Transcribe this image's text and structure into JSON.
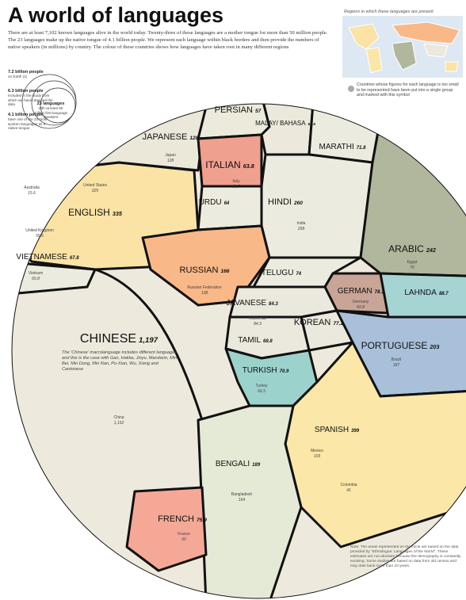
{
  "header": {
    "title": "A world of languages",
    "intro": "There are at least 7,102 known languages alive in the world today. Twenty-three of these languages are a mother tongue for more than 50 million people. The 23 languages make up the native tongue of 4.1 billion people. We represent each language within black borders and then provide the numbers of native speakers (in millions) by country. The colour of these countries shows how languages have taken root in many different regions"
  },
  "map": {
    "title": "Regions in which these languages are present",
    "note": "Countries whose figures for each language is too small to be represented have been put into a single group and marked with this symbol"
  },
  "legend": [
    {
      "value": "7.2 billion people",
      "text": "on Earth (1)"
    },
    {
      "value": "6.3 billion people",
      "text": "included in the study from which we have obtained the data"
    },
    {
      "value": "4.1 billion people",
      "text": "have one of the 23 most-spoken languages as a native tongue"
    },
    {
      "value": "23 languages",
      "text": "with at least 50 million first-language speakers"
    }
  ],
  "languages": [
    {
      "name": "CHINESE",
      "value": "1,197"
    },
    {
      "name": "ENGLISH",
      "value": "335"
    },
    {
      "name": "JAPANESE",
      "value": "128"
    },
    {
      "name": "PERSIAN",
      "value": "57"
    },
    {
      "name": "ITALIAN",
      "value": "63.8"
    },
    {
      "name": "MALAY/ BAHASA",
      "value": "60.5"
    },
    {
      "name": "MARATHI",
      "value": "71.8"
    },
    {
      "name": "URDU",
      "value": "64"
    },
    {
      "name": "HINDI",
      "value": "260"
    },
    {
      "name": "ARABIC",
      "value": "242"
    },
    {
      "name": "RUSSIAN",
      "value": "166"
    },
    {
      "name": "TELUGU",
      "value": "74"
    },
    {
      "name": "GERMAN",
      "value": "78.1"
    },
    {
      "name": "LAHNDA",
      "value": "88.7"
    },
    {
      "name": "JAVANESE",
      "value": "84.3"
    },
    {
      "name": "KOREAN",
      "value": "77.2"
    },
    {
      "name": "TAMIL",
      "value": "68.8"
    },
    {
      "name": "PORTUGUESE",
      "value": "203"
    },
    {
      "name": "TURKISH",
      "value": "70.9"
    },
    {
      "name": "SPANISH",
      "value": "399"
    },
    {
      "name": "BENGALI",
      "value": "189"
    },
    {
      "name": "FRENCH",
      "value": "75.9"
    },
    {
      "name": "VIETNAMESE",
      "value": "67.8"
    }
  ],
  "countries": [
    {
      "name": "Japan",
      "value": "128"
    },
    {
      "name": "United States",
      "value": "225"
    },
    {
      "name": "United Kingdom",
      "value": "55.6"
    },
    {
      "name": "Australia",
      "value": "15.6"
    },
    {
      "name": "India",
      "value": "258"
    },
    {
      "name": "Russian Federation",
      "value": "138"
    },
    {
      "name": "China",
      "value": "1,152"
    },
    {
      "name": "Vietnam",
      "value": "65.8"
    },
    {
      "name": "Brazil",
      "value": "187"
    },
    {
      "name": "Mexico",
      "value": "103"
    },
    {
      "name": "Bangladesh",
      "value": "164"
    },
    {
      "name": "Turkey",
      "value": "66.5"
    },
    {
      "name": "Germany",
      "value": "69.8"
    },
    {
      "name": "Indonesia",
      "value": "84.3"
    },
    {
      "name": "Italy",
      "value": "59.7"
    },
    {
      "name": "France",
      "value": "60"
    },
    {
      "name": "Egypt",
      "value": "70"
    },
    {
      "name": "Colombia",
      "value": "41"
    }
  ],
  "chinese_note": "The 'Chinese' macrolanguage includes different languages, and this is the case with Gan, Hakka, Jinyu, Mandarin, Min Bei, Min Dong, Min Nan, Pu-Xian, Wu, Xiang and Cantonese",
  "footnote": "Note: The areas represented on the circle are based on the data provided by \"Ethnologue: Languages of the World\". These estimates are not absolute because the demography is constantly evolving. Some studies are based on data from old census and may date back more than 10 years."
}
